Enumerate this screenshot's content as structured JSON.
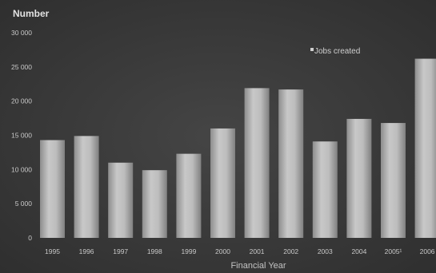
{
  "chart_data": {
    "type": "bar",
    "title": "",
    "ylabel": "Number",
    "xlabel": "Financial Year",
    "categories": [
      "1995",
      "1996",
      "1997",
      "1998",
      "1999",
      "2000",
      "2001",
      "2002",
      "2003",
      "2004",
      "2005¹",
      "2006"
    ],
    "series": [
      {
        "name": "Jobs created",
        "values": [
          14300,
          14900,
          11000,
          9900,
          12300,
          16000,
          21900,
          21700,
          14100,
          17400,
          16800,
          26200
        ],
        "color": "#b5b5b5"
      }
    ],
    "ylim": [
      0,
      30000
    ],
    "yticks": [
      0,
      5000,
      10000,
      15000,
      20000,
      25000,
      30000
    ],
    "ytick_labels": [
      "0",
      "5 000",
      "10 000",
      "15 000",
      "20 000",
      "25 000",
      "30 000"
    ],
    "grid": false,
    "legend_position": "top-right"
  }
}
